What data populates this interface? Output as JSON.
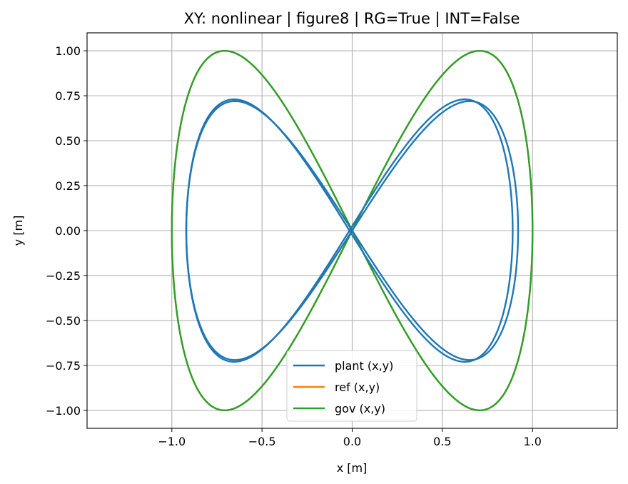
{
  "chart_data": {
    "type": "line",
    "title": "XY: nonlinear | figure8 | RG=True | INT=False",
    "xlabel": "x [m]",
    "ylabel": "y [m]",
    "xlim": [
      -1.47,
      1.47
    ],
    "ylim": [
      -1.1,
      1.1
    ],
    "grid": true,
    "legend_position": "bottom-center",
    "x_ticks": [
      {
        "value": -1.0,
        "label": "−1.0"
      },
      {
        "value": -0.5,
        "label": "−0.5"
      },
      {
        "value": 0.0,
        "label": "0.0"
      },
      {
        "value": 0.5,
        "label": "0.5"
      },
      {
        "value": 1.0,
        "label": "1.0"
      }
    ],
    "y_ticks": [
      {
        "value": 1.0,
        "label": "1.00"
      },
      {
        "value": 0.75,
        "label": "0.75"
      },
      {
        "value": 0.5,
        "label": "0.50"
      },
      {
        "value": 0.25,
        "label": "0.25"
      },
      {
        "value": 0.0,
        "label": "0.00"
      },
      {
        "value": -0.25,
        "label": "−0.25"
      },
      {
        "value": -0.5,
        "label": "−0.50"
      },
      {
        "value": -0.75,
        "label": "−0.75"
      },
      {
        "value": -1.0,
        "label": "−1.00"
      }
    ],
    "series": [
      {
        "name": "ref (x,y)",
        "color": "#ff7f0e",
        "shape": "figure-eight",
        "x_amplitude": 1.0,
        "y_amplitude": 1.0
      },
      {
        "name": "gov (x,y)",
        "color": "#2ca02c",
        "shape": "figure-eight",
        "x_amplitude": 1.0,
        "y_amplitude": 1.0
      },
      {
        "name": "plant (x,y)",
        "color": "#1f77b4",
        "shape": "figure-eight",
        "x_amplitude": 0.92,
        "y_amplitude": 0.72,
        "extra_loop": {
          "x_amplitude": 0.905,
          "y_amplitude": 0.73,
          "x_offset": -0.015,
          "y_offset": 0.0
        }
      }
    ],
    "legend_order": [
      "plant (x,y)",
      "ref (x,y)",
      "gov (x,y)"
    ]
  }
}
